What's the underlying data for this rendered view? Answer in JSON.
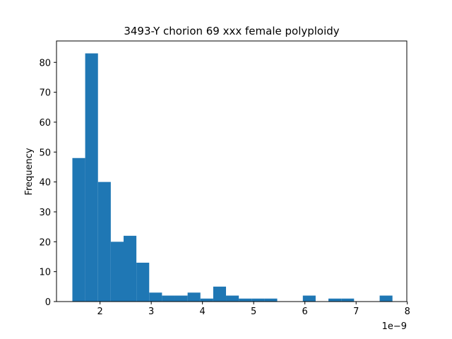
{
  "chart_data": {
    "type": "bar",
    "title": "3493-Y chorion 69 xxx female polyploidy",
    "xlabel": "",
    "ylabel": "Frequency",
    "x_offset_label": "1e−9",
    "x_scale": 1e-09,
    "bins": [
      {
        "x0": 1.46,
        "x1": 1.71,
        "count": 48
      },
      {
        "x0": 1.71,
        "x1": 1.96,
        "count": 83
      },
      {
        "x0": 1.96,
        "x1": 2.21,
        "count": 40
      },
      {
        "x0": 2.21,
        "x1": 2.46,
        "count": 20
      },
      {
        "x0": 2.46,
        "x1": 2.71,
        "count": 22
      },
      {
        "x0": 2.71,
        "x1": 2.96,
        "count": 13
      },
      {
        "x0": 2.96,
        "x1": 3.21,
        "count": 3
      },
      {
        "x0": 3.21,
        "x1": 3.46,
        "count": 2
      },
      {
        "x0": 3.46,
        "x1": 3.71,
        "count": 2
      },
      {
        "x0": 3.71,
        "x1": 3.96,
        "count": 3
      },
      {
        "x0": 3.96,
        "x1": 4.21,
        "count": 1
      },
      {
        "x0": 4.21,
        "x1": 4.46,
        "count": 5
      },
      {
        "x0": 4.46,
        "x1": 4.71,
        "count": 2
      },
      {
        "x0": 4.71,
        "x1": 4.96,
        "count": 1
      },
      {
        "x0": 4.96,
        "x1": 5.21,
        "count": 1
      },
      {
        "x0": 5.21,
        "x1": 5.46,
        "count": 1
      },
      {
        "x0": 5.46,
        "x1": 5.71,
        "count": 0
      },
      {
        "x0": 5.71,
        "x1": 5.96,
        "count": 0
      },
      {
        "x0": 5.96,
        "x1": 6.21,
        "count": 2
      },
      {
        "x0": 6.21,
        "x1": 6.46,
        "count": 0
      },
      {
        "x0": 6.46,
        "x1": 6.71,
        "count": 1
      },
      {
        "x0": 6.71,
        "x1": 6.96,
        "count": 1
      },
      {
        "x0": 6.96,
        "x1": 7.21,
        "count": 0
      },
      {
        "x0": 7.21,
        "x1": 7.46,
        "count": 0
      },
      {
        "x0": 7.46,
        "x1": 7.71,
        "count": 2
      }
    ],
    "xlim": [
      1.15,
      7.99
    ],
    "ylim": [
      0,
      87.15
    ],
    "xticks": [
      2,
      3,
      4,
      5,
      6,
      7,
      8
    ],
    "yticks": [
      0,
      10,
      20,
      30,
      40,
      50,
      60,
      70,
      80
    ],
    "bar_color": "#1f77b4",
    "grid": false,
    "legend": "none"
  }
}
